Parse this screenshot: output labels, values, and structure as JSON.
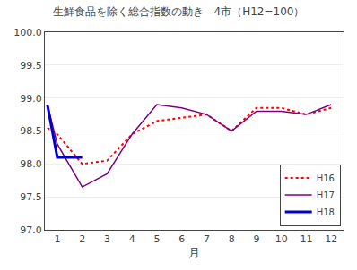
{
  "chart_data": {
    "type": "line",
    "title": "生鮮食品を除く総合指数の動き　4市（H12=100）",
    "x_label": "月",
    "xlim": [
      0.5,
      12.5
    ],
    "xticks": [
      1,
      2,
      3,
      4,
      5,
      6,
      7,
      8,
      9,
      10,
      11,
      12
    ],
    "ylim": [
      97.0,
      100.0
    ],
    "yticks": [
      {
        "value": 97.0,
        "label": "97.0"
      },
      {
        "value": 97.5,
        "label": "97.5"
      },
      {
        "value": 98.0,
        "label": "98.0"
      },
      {
        "value": 98.5,
        "label": "98.5"
      },
      {
        "value": 99.0,
        "label": "99.0"
      },
      {
        "value": 99.5,
        "label": "99.5"
      },
      {
        "value": 100.0,
        "label": "100.0"
      }
    ],
    "grid": "y",
    "legend": "lower right",
    "series": [
      {
        "name": "H16",
        "color": "#ff0000",
        "line_style": "dotted",
        "x": [
          0.6,
          1,
          2,
          3,
          4,
          5,
          6,
          7,
          8,
          9,
          10,
          11,
          12
        ],
        "values": [
          98.55,
          98.45,
          98.0,
          98.05,
          98.45,
          98.65,
          98.7,
          98.75,
          98.5,
          98.85,
          98.85,
          98.75,
          98.85
        ]
      },
      {
        "name": "H17",
        "color": "#7b0080",
        "line_style": "solid",
        "x": [
          0.6,
          1,
          2,
          3,
          4,
          5,
          6,
          7,
          8,
          9,
          10,
          11,
          12
        ],
        "values": [
          98.9,
          98.3,
          97.65,
          97.85,
          98.45,
          98.9,
          98.85,
          98.75,
          98.5,
          98.8,
          98.8,
          98.75,
          98.9
        ]
      },
      {
        "name": "H18",
        "color": "#0000cc",
        "line_style": "solid",
        "x": [
          0.6,
          1,
          2
        ],
        "values": [
          98.9,
          98.1,
          98.1
        ]
      }
    ]
  }
}
